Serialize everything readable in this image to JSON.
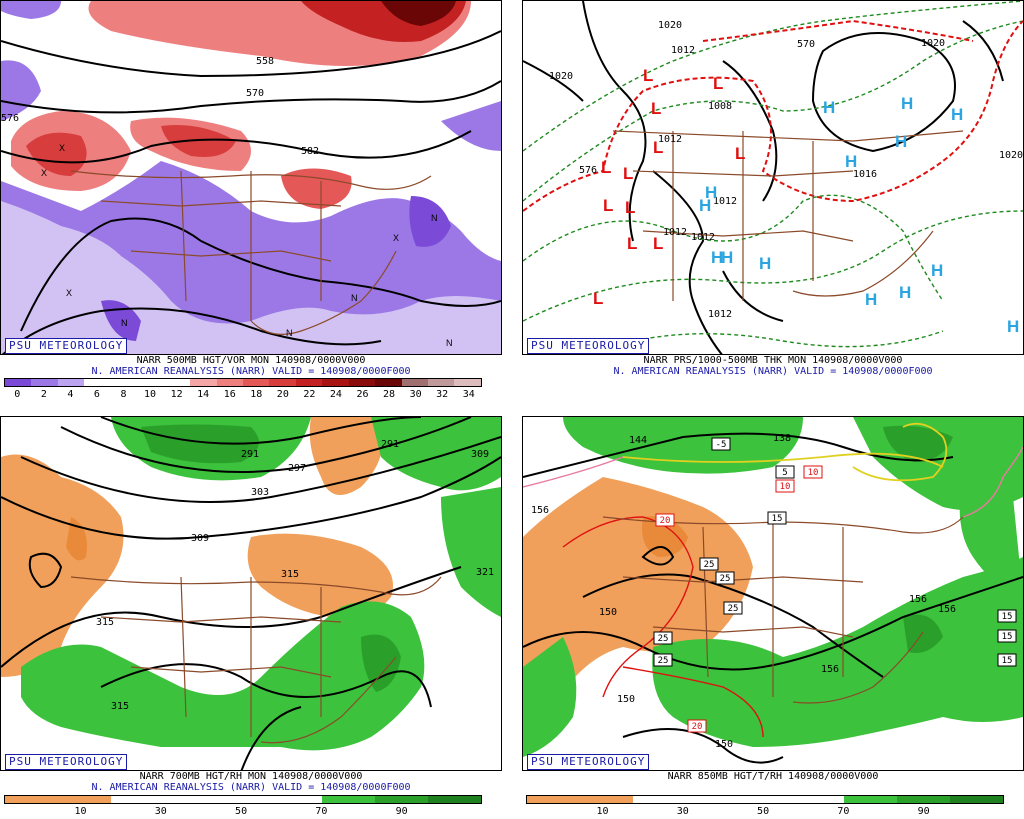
{
  "panels": {
    "top_left": {
      "badge": "PSU METEOROLOGY",
      "caption1": "NARR 500MB HGT/VOR MON 140908/0000V000",
      "caption2": "N. AMERICAN REANALYSIS (NARR) VALID = 140908/0000F000",
      "contour_labels": [
        "558",
        "570",
        "582",
        "576"
      ],
      "centers": [
        "X",
        "X",
        "N",
        "N",
        "N",
        "N",
        "X",
        "N",
        "X"
      ],
      "legend_colors": [
        "#7b4ad6",
        "#9c78e6",
        "#bca4f0",
        "#ffffff",
        "#ffffff",
        "#ffffff",
        "#ffffff",
        "#f4a6a6",
        "#ee7f7f",
        "#e55858",
        "#d83d3d",
        "#c42222",
        "#a81414",
        "#8a0b0b",
        "#6b0606",
        "#a07070",
        "#c09a9a",
        "#dcbcbc"
      ],
      "legend_ticks": [
        "0",
        "2",
        "4",
        "6",
        "8",
        "10",
        "12",
        "14",
        "16",
        "18",
        "20",
        "22",
        "24",
        "26",
        "28",
        "30",
        "32",
        "34"
      ]
    },
    "top_right": {
      "badge": "PSU METEOROLOGY",
      "caption1": "NARR PRS/1000-500MB THK MON 140908/0000V000",
      "caption2": "N. AMERICAN REANALYSIS (NARR) VALID = 140908/0000F000",
      "contour_labels": [
        "1020",
        "1012",
        "1020",
        "1008",
        "1012",
        "1012",
        "1012",
        "1012",
        "1016",
        "1020",
        "576",
        "1020",
        "1012",
        "570"
      ],
      "lows": [
        "L",
        "L",
        "L",
        "L",
        "L",
        "L",
        "L",
        "L",
        "L",
        "L",
        "L",
        "L"
      ],
      "highs": [
        "H",
        "H",
        "H",
        "H",
        "H",
        "H",
        "H",
        "H",
        "H",
        "H",
        "H",
        "H",
        "H",
        "H"
      ],
      "colors": {
        "low": "#e01010",
        "high": "#2aa5e0",
        "thickness_cold": "#1e8a1e",
        "thickness_warm": "#e01010"
      }
    },
    "bottom_left": {
      "badge": "PSU METEOROLOGY",
      "caption1": "NARR 700MB HGT/RH MON 140908/0000V000",
      "caption2": "N. AMERICAN REANALYSIS (NARR) VALID = 140908/0000F000",
      "contour_labels": [
        "291",
        "297",
        "303",
        "291",
        "309",
        "309",
        "315",
        "315",
        "321",
        "315"
      ],
      "legend_colors": [
        "#f0a05a",
        "#f0a05a",
        "#ffffff",
        "#ffffff",
        "#ffffff",
        "#ffffff",
        "#3cc23c",
        "#2aa02a",
        "#1e801e"
      ],
      "legend_ticks": [
        "10",
        "30",
        "50",
        "70",
        "90"
      ]
    },
    "bottom_right": {
      "badge": "PSU METEOROLOGY",
      "caption1": "NARR 850MB HGT/T/RH 140908/0000V000",
      "contour_labels": [
        "144",
        "138",
        "156",
        "150",
        "150",
        "150",
        "156",
        "156",
        "156"
      ],
      "temp_boxes": [
        "-5",
        "5",
        "10",
        "10",
        "15",
        "20",
        "25",
        "25",
        "25",
        "25",
        "25",
        "20",
        "15",
        "15",
        "15"
      ],
      "legend_colors": [
        "#f0a05a",
        "#f0a05a",
        "#ffffff",
        "#ffffff",
        "#ffffff",
        "#ffffff",
        "#3cc23c",
        "#2aa02a",
        "#1e801e"
      ],
      "legend_ticks": [
        "10",
        "30",
        "50",
        "70",
        "90"
      ]
    }
  }
}
